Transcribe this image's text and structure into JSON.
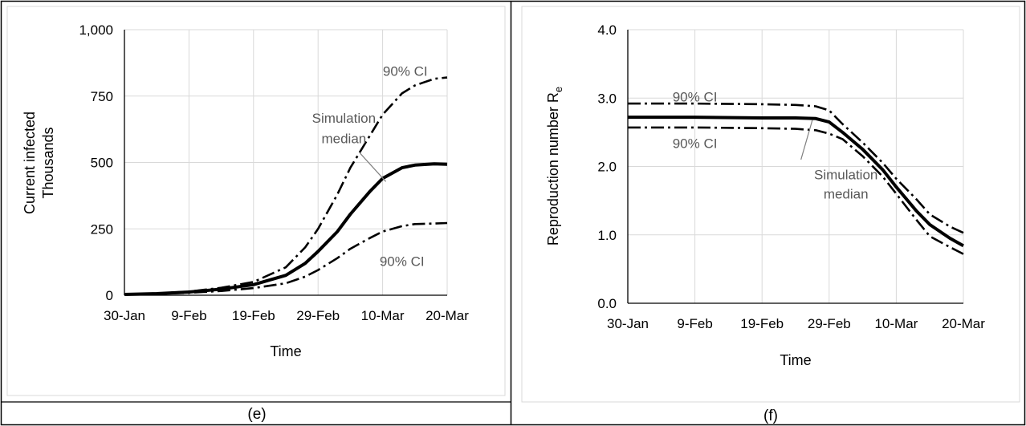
{
  "colors": {
    "axis": "#000000",
    "grid": "#d9d9d9",
    "line": "#000000",
    "annotation": "#595959",
    "frame": "#d9d9d9",
    "border": "#000000"
  },
  "chart_data": [
    {
      "type": "line",
      "panel_label": "(e)",
      "xlabel": "Time",
      "ylabel": "Current infected",
      "ylabel2": "Thousands",
      "x_ticks": [
        "30-Jan",
        "9-Feb",
        "19-Feb",
        "29-Feb",
        "10-Mar",
        "20-Mar"
      ],
      "xlim": [
        0,
        50
      ],
      "ylim": [
        0,
        1000
      ],
      "y_ticks": [
        0,
        250,
        500,
        750,
        1000
      ],
      "y_tick_labels": [
        "0",
        "250",
        "500",
        "750",
        "1,000"
      ],
      "grid": true,
      "series": [
        {
          "style": "solid",
          "x": [
            0,
            5,
            10,
            15,
            20,
            25,
            28,
            30,
            33,
            35,
            38,
            40,
            43,
            45,
            48,
            50
          ],
          "y": [
            3,
            6,
            12,
            23,
            40,
            75,
            120,
            165,
            240,
            305,
            390,
            440,
            480,
            490,
            495,
            493
          ]
        },
        {
          "style": "dashdot",
          "x": [
            0,
            5,
            10,
            15,
            20,
            25,
            28,
            30,
            33,
            35,
            38,
            40,
            43,
            45,
            48,
            50
          ],
          "y": [
            4,
            7,
            14,
            28,
            50,
            105,
            180,
            250,
            380,
            480,
            600,
            680,
            760,
            790,
            815,
            820
          ]
        },
        {
          "style": "dashdot",
          "x": [
            0,
            5,
            10,
            15,
            20,
            25,
            28,
            30,
            33,
            35,
            38,
            40,
            43,
            45,
            48,
            50
          ],
          "y": [
            3,
            5,
            9,
            16,
            27,
            45,
            70,
            95,
            140,
            175,
            215,
            240,
            260,
            268,
            270,
            272
          ]
        }
      ],
      "annotations": [
        {
          "text": "90% CI",
          "x": 43.5,
          "y": 845
        },
        {
          "text": "Simulation",
          "x": 34,
          "y": 668
        },
        {
          "text": "median",
          "x": 34,
          "y": 590
        },
        {
          "text": "90% CI",
          "x": 43,
          "y": 128
        }
      ],
      "leader": [
        [
          36.5,
          535
        ],
        [
          40.5,
          428
        ]
      ]
    },
    {
      "type": "line",
      "panel_label": "(f)",
      "xlabel": "Time",
      "ylabel": "Reproduction number R",
      "ylabel_subscript": "e",
      "x_ticks": [
        "30-Jan",
        "9-Feb",
        "19-Feb",
        "29-Feb",
        "10-Mar",
        "20-Mar"
      ],
      "xlim": [
        0,
        50
      ],
      "ylim": [
        0,
        4
      ],
      "y_ticks": [
        0,
        1,
        2,
        3,
        4
      ],
      "y_tick_labels": [
        "0.0",
        "1.0",
        "2.0",
        "3.0",
        "4.0"
      ],
      "grid": true,
      "series": [
        {
          "style": "solid",
          "x": [
            0,
            10,
            20,
            25,
            28,
            30,
            32,
            35,
            38,
            40,
            43,
            45,
            48,
            50
          ],
          "y": [
            2.72,
            2.72,
            2.71,
            2.71,
            2.7,
            2.65,
            2.5,
            2.25,
            1.95,
            1.7,
            1.35,
            1.15,
            0.95,
            0.84
          ]
        },
        {
          "style": "dashdot",
          "x": [
            0,
            10,
            20,
            25,
            28,
            30,
            32,
            35,
            38,
            40,
            43,
            45,
            48,
            50
          ],
          "y": [
            2.92,
            2.92,
            2.91,
            2.9,
            2.88,
            2.82,
            2.62,
            2.35,
            2.05,
            1.82,
            1.52,
            1.3,
            1.12,
            1.03
          ]
        },
        {
          "style": "dashdot",
          "x": [
            0,
            10,
            20,
            25,
            28,
            30,
            32,
            35,
            38,
            40,
            43,
            45,
            48,
            50
          ],
          "y": [
            2.57,
            2.57,
            2.56,
            2.55,
            2.53,
            2.48,
            2.4,
            2.15,
            1.85,
            1.6,
            1.22,
            0.98,
            0.82,
            0.72
          ]
        }
      ],
      "annotations": [
        {
          "text": "90% CI",
          "x": 10,
          "y": 3.02
        },
        {
          "text": "90% CI",
          "x": 10,
          "y": 2.34
        },
        {
          "text": "Simulation",
          "x": 32.5,
          "y": 1.88
        },
        {
          "text": "median",
          "x": 32.5,
          "y": 1.6
        }
      ],
      "leader": [
        [
          27.5,
          2.68
        ],
        [
          25.8,
          2.1
        ]
      ]
    }
  ]
}
